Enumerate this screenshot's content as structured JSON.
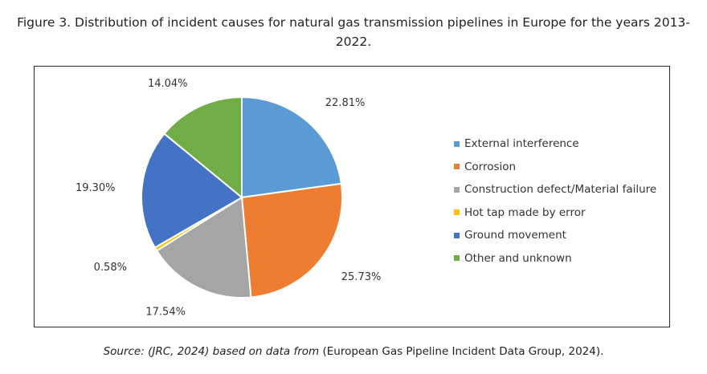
{
  "figure": {
    "title": "Figure 3. Distribution of incident causes for natural gas transmission pipelines in Europe for the years 2013-2022."
  },
  "source": {
    "italic_part": "Source: (JRC, 2024) based on data from",
    "normal_part": "(European Gas Pipeline Incident Data Group, 2024)."
  },
  "chart_data": {
    "type": "pie",
    "title": "",
    "categories": [
      "External interference",
      "Corrosion",
      "Construction defect/Material failure",
      "Hot tap made by error",
      "Ground movement",
      "Other and unknown"
    ],
    "values": [
      22.81,
      25.73,
      17.54,
      0.58,
      19.3,
      14.04
    ],
    "value_labels": [
      "22.81%",
      "25.73%",
      "17.54%",
      "0.58%",
      "19.30%",
      "14.04%"
    ],
    "colors": [
      "#5b9bd5",
      "#ed7d31",
      "#a5a5a5",
      "#ffc000",
      "#4472c4",
      "#70ad47"
    ],
    "start_angle_deg": 0,
    "direction": "clockwise",
    "legend_position": "right"
  }
}
